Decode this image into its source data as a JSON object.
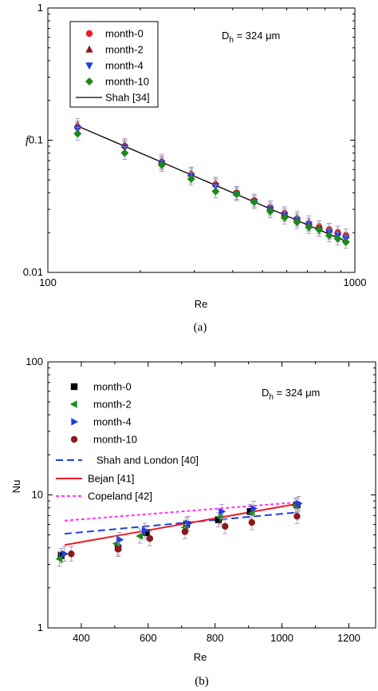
{
  "colors": {
    "red": "#ee1c25",
    "darkred": "#8b1a1a",
    "blue": "#1f3fe0",
    "green": "#1a8a1a",
    "black": "#000000",
    "magenta": "#ff33ff",
    "errorbar": "#9f8fb0"
  },
  "charts": [
    {
      "caption": "(a)",
      "annotation": "D",
      "annotation_sub": "h",
      "annotation_rest": " = 324 μm",
      "ylabel": "f",
      "xlabel": "Re",
      "x_ticks": [
        "100",
        "1000"
      ],
      "y_ticks": [
        "0.01",
        "0.1",
        "1"
      ],
      "legend": [
        "month-0",
        "month-2",
        "month-4",
        "month-10",
        "Shah [34]"
      ]
    },
    {
      "caption": "(b)",
      "annotation": "D",
      "annotation_sub": "h",
      "annotation_rest": " = 324 μm",
      "ylabel": "Nu",
      "xlabel": "Re",
      "x_ticks": [
        "400",
        "600",
        "800",
        "1000",
        "1200"
      ],
      "y_ticks": [
        "1",
        "10",
        "100"
      ],
      "legend": [
        "month-0",
        "month-2",
        "month-4",
        "month-10",
        "Shah and London [40]",
        "Bejan [41]",
        "Copeland [42]"
      ]
    }
  ],
  "chart_data": [
    {
      "type": "scatter",
      "xlabel": "Re",
      "ylabel": "f",
      "xscale": "log",
      "yscale": "log",
      "xlim": [
        100,
        1000
      ],
      "ylim": [
        0.01,
        1
      ],
      "grid": false,
      "legend_position": "top-left",
      "series": [
        {
          "name": "month-0",
          "marker": "circle",
          "color": "#ee1c25",
          "x": [
            125,
            178,
            235,
            293,
            352,
            412,
            470,
            530,
            590,
            648,
            708,
            765,
            825,
            880,
            935
          ],
          "y": [
            0.125,
            0.09,
            0.068,
            0.055,
            0.046,
            0.04,
            0.035,
            0.031,
            0.028,
            0.025,
            0.023,
            0.022,
            0.021,
            0.02,
            0.019
          ]
        },
        {
          "name": "month-2",
          "marker": "triangle-up",
          "color": "#8b1a1a",
          "x": [
            125,
            178,
            235,
            293,
            352,
            412,
            470,
            530,
            590,
            648,
            708,
            765,
            825,
            880,
            935
          ],
          "y": [
            0.13,
            0.092,
            0.07,
            0.056,
            0.047,
            0.04,
            0.035,
            0.031,
            0.028,
            0.026,
            0.024,
            0.022,
            0.021,
            0.02,
            0.019
          ]
        },
        {
          "name": "month-4",
          "marker": "triangle-down",
          "color": "#1f3fe0",
          "x": [
            125,
            178,
            235,
            293,
            352,
            412,
            470,
            530,
            590,
            648,
            708,
            765,
            825,
            880,
            935
          ],
          "y": [
            0.122,
            0.088,
            0.067,
            0.053,
            0.045,
            0.039,
            0.034,
            0.03,
            0.027,
            0.025,
            0.023,
            0.021,
            0.02,
            0.019,
            0.018
          ]
        },
        {
          "name": "month-10",
          "marker": "diamond",
          "color": "#1a8a1a",
          "x": [
            125,
            178,
            235,
            293,
            352,
            412,
            470,
            530,
            590,
            648,
            708,
            765,
            825,
            880,
            935
          ],
          "y": [
            0.112,
            0.08,
            0.065,
            0.051,
            0.041,
            0.039,
            0.034,
            0.029,
            0.026,
            0.024,
            0.022,
            0.021,
            0.019,
            0.018,
            0.017
          ]
        },
        {
          "name": "Shah [34]",
          "type": "line",
          "style": "solid",
          "color": "#000000",
          "x": [
            125,
            950
          ],
          "y": [
            0.128,
            0.0169
          ]
        }
      ]
    },
    {
      "type": "scatter",
      "xlabel": "Re",
      "ylabel": "Nu",
      "xscale": "linear",
      "yscale": "log",
      "xlim": [
        300,
        1280
      ],
      "ylim": [
        1,
        100
      ],
      "grid": false,
      "legend_position": "top-left",
      "series": [
        {
          "name": "month-0",
          "marker": "square",
          "color": "#000000",
          "x": [
            340,
            510,
            595,
            715,
            810,
            905,
            1045
          ],
          "y": [
            3.5,
            4.0,
            5.2,
            6.0,
            6.5,
            7.5,
            8.4
          ]
        },
        {
          "name": "month-2",
          "marker": "triangle-left",
          "color": "#1a8a1a",
          "x": [
            335,
            505,
            575,
            710,
            815,
            910,
            1040
          ],
          "y": [
            3.3,
            4.3,
            4.9,
            5.7,
            6.8,
            7.3,
            8.3
          ]
        },
        {
          "name": "month-4",
          "marker": "triangle-right",
          "color": "#1f3fe0",
          "x": [
            350,
            515,
            590,
            720,
            820,
            915,
            1050
          ],
          "y": [
            3.6,
            4.6,
            5.4,
            6.1,
            7.5,
            7.9,
            8.6
          ]
        },
        {
          "name": "month-10",
          "marker": "circle",
          "color": "#8b1a1a",
          "x": [
            370,
            510,
            605,
            710,
            830,
            910,
            1045
          ],
          "y": [
            3.6,
            3.9,
            4.7,
            5.3,
            5.8,
            6.2,
            6.9
          ]
        },
        {
          "name": "Shah and London [40]",
          "type": "line",
          "style": "dashed",
          "color": "#1f3fe0",
          "x": [
            350,
            1050
          ],
          "y": [
            5.1,
            7.4
          ]
        },
        {
          "name": "Bejan [41]",
          "type": "line",
          "style": "solid",
          "color": "#ee1c25",
          "x": [
            350,
            1050
          ],
          "y": [
            4.2,
            8.6
          ]
        },
        {
          "name": "Copeland [42]",
          "type": "line",
          "style": "dotted",
          "color": "#ff33ff",
          "x": [
            350,
            1050
          ],
          "y": [
            6.4,
            8.8
          ]
        }
      ]
    }
  ]
}
